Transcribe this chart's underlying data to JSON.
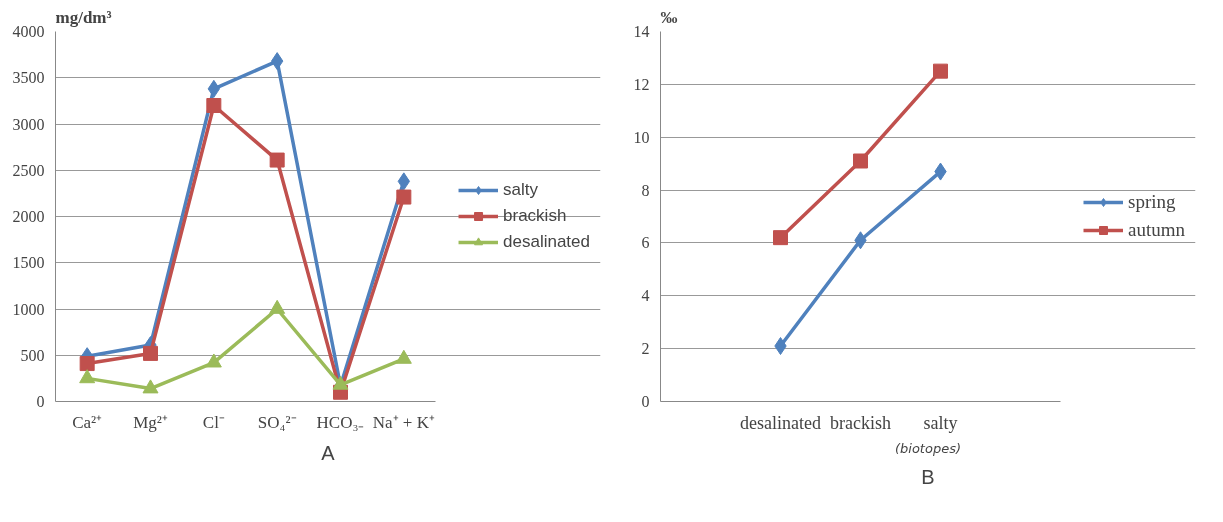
{
  "chart_data": [
    {
      "type": "line",
      "title": "A",
      "ylabel": "mg/dm³",
      "categories": [
        "Ca²⁺",
        "Mg²⁺",
        "Cl⁻",
        "SO₄²⁻",
        "HCO₃₋",
        "Na⁺ + K⁺"
      ],
      "ylim": [
        0,
        4000
      ],
      "yticks": [
        0,
        500,
        1000,
        1500,
        2000,
        2500,
        3000,
        3500,
        4000
      ],
      "grid": "y",
      "legend": "right",
      "series": [
        {
          "name": "salty",
          "color": "#4f81bd",
          "marker": "diamond",
          "values": [
            490,
            610,
            3380,
            3680,
            170,
            2380
          ]
        },
        {
          "name": "brackish",
          "color": "#c0504d",
          "marker": "square",
          "values": [
            410,
            520,
            3200,
            2610,
            100,
            2210
          ]
        },
        {
          "name": "desalinated",
          "color": "#9bbb59",
          "marker": "triangle",
          "values": [
            250,
            140,
            420,
            1000,
            180,
            460
          ]
        }
      ]
    },
    {
      "type": "line",
      "title": "B",
      "ylabel": "‰",
      "xlabel": "(biotopes)",
      "categories": [
        null,
        "desalinated",
        "brackish",
        "salty",
        null
      ],
      "ylim": [
        0,
        14
      ],
      "yticks": [
        0,
        2,
        4,
        6,
        8,
        10,
        12,
        14
      ],
      "grid": "y",
      "legend": "right",
      "series": [
        {
          "name": "spring",
          "color": "#4f81bd",
          "marker": "diamond",
          "values": [
            null,
            2.1,
            6.1,
            8.7,
            null
          ]
        },
        {
          "name": "autumn",
          "color": "#c0504d",
          "marker": "square",
          "values": [
            null,
            6.2,
            9.1,
            12.5,
            null
          ]
        }
      ]
    }
  ]
}
